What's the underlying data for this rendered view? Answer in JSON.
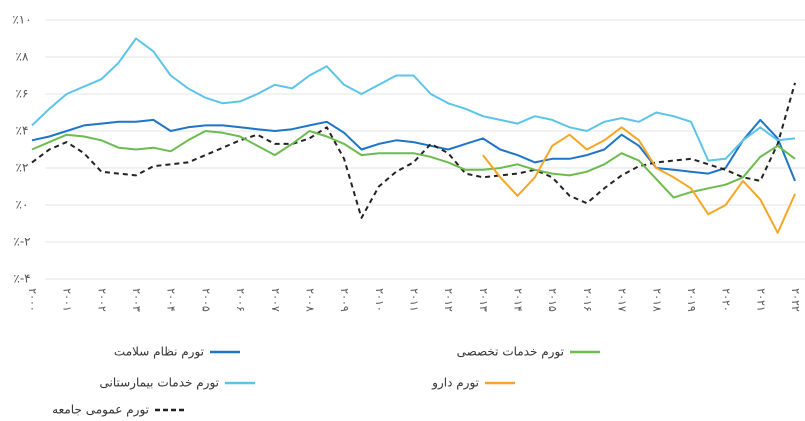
{
  "chart_data": {
    "type": "line",
    "categories": [
      "۲۰۰۰",
      null,
      "۲۰۰۱",
      null,
      "۲۰۰۲",
      null,
      "۲۰۰۳",
      null,
      "۲۰۰۴",
      null,
      "۲۰۰۵",
      null,
      "۲۰۰۶",
      null,
      "۲۰۰۷",
      null,
      "۲۰۰۸",
      null,
      "۲۰۰۹",
      null,
      "۲۰۱۰",
      null,
      "۲۰۱۱",
      null,
      "۲۰۱۲",
      null,
      "۲۰۱۳",
      null,
      "۲۰۱۴",
      null,
      "۲۰۱۵",
      null,
      "۲۰۱۶",
      null,
      "۲۰۱۷",
      null,
      "۲۰۱۸",
      null,
      "۲۰۱۹",
      null,
      "۲۰۲۰",
      null,
      "۲۰۲۱",
      null,
      "۲۰۲۲"
    ],
    "ylim": [
      -4,
      10
    ],
    "yticks": [
      {
        "value": 10,
        "label": "٪۱۰"
      },
      {
        "value": 8,
        "label": "٪۸"
      },
      {
        "value": 6,
        "label": "٪۶"
      },
      {
        "value": 4,
        "label": "٪۴"
      },
      {
        "value": 2,
        "label": "٪۲"
      },
      {
        "value": 0,
        "label": "٪۰"
      },
      {
        "value": -2,
        "label": "٪-۲"
      },
      {
        "value": -4,
        "label": "٪-۴"
      }
    ],
    "grid": true,
    "series": [
      {
        "name": "تورم نظام سلامت",
        "color": "#1f74c8",
        "dashed": false,
        "values": [
          3.5,
          3.7,
          4.0,
          4.3,
          4.4,
          4.5,
          4.5,
          4.6,
          4.0,
          4.2,
          4.3,
          4.3,
          4.2,
          4.1,
          4.0,
          4.1,
          4.3,
          4.5,
          3.9,
          3.0,
          3.3,
          3.5,
          3.4,
          3.2,
          3.0,
          3.3,
          3.6,
          3.0,
          2.7,
          2.3,
          2.5,
          2.5,
          2.7,
          3.0,
          3.8,
          3.2,
          2.0,
          1.9,
          1.8,
          1.7,
          2.0,
          3.5,
          4.6,
          3.6,
          1.3
        ]
      },
      {
        "name": "تورم خدمات بیمارستانی",
        "color": "#5cc4e8",
        "dashed": false,
        "values": [
          4.3,
          5.2,
          6.0,
          6.4,
          6.8,
          7.7,
          9.0,
          8.3,
          7.0,
          6.3,
          5.8,
          5.5,
          5.6,
          6.0,
          6.5,
          6.3,
          7.0,
          7.5,
          6.5,
          6.0,
          6.5,
          7.0,
          7.0,
          6.0,
          5.5,
          5.2,
          4.8,
          4.6,
          4.4,
          4.8,
          4.6,
          4.2,
          4.0,
          4.5,
          4.7,
          4.5,
          5.0,
          4.8,
          4.5,
          2.4,
          2.5,
          3.5,
          4.2,
          3.5,
          3.6
        ]
      },
      {
        "name": "تورم عمومی جامعه",
        "color": "#222222",
        "dashed": true,
        "values": [
          2.3,
          3.0,
          3.4,
          2.8,
          1.8,
          1.7,
          1.6,
          2.1,
          2.2,
          2.3,
          2.7,
          3.1,
          3.5,
          3.8,
          3.3,
          3.3,
          3.6,
          4.2,
          2.5,
          -0.7,
          1.0,
          1.8,
          2.3,
          3.3,
          2.8,
          1.7,
          1.5,
          1.6,
          1.7,
          1.9,
          1.5,
          0.5,
          0.1,
          0.9,
          1.6,
          2.1,
          2.3,
          2.4,
          2.5,
          2.2,
          1.9,
          1.5,
          1.3,
          3.3,
          6.6
        ]
      },
      {
        "name": "تورم خدمات تخصصی",
        "color": "#6cbb4e",
        "dashed": false,
        "values": [
          3.0,
          3.4,
          3.8,
          3.7,
          3.5,
          3.1,
          3.0,
          3.1,
          2.9,
          3.5,
          4.0,
          3.9,
          3.7,
          3.2,
          2.7,
          3.3,
          4.0,
          3.7,
          3.3,
          2.7,
          2.8,
          2.8,
          2.8,
          2.6,
          2.3,
          1.9,
          1.9,
          2.0,
          2.2,
          1.9,
          1.7,
          1.6,
          1.8,
          2.2,
          2.8,
          2.4,
          1.4,
          0.4,
          0.7,
          0.9,
          1.1,
          1.5,
          2.6,
          3.2,
          2.5
        ]
      },
      {
        "name": "تورم دارو",
        "color": "#f5a623",
        "dashed": false,
        "values": [
          null,
          null,
          null,
          null,
          null,
          null,
          null,
          null,
          null,
          null,
          null,
          null,
          null,
          null,
          null,
          null,
          null,
          null,
          null,
          null,
          null,
          null,
          null,
          null,
          null,
          null,
          2.7,
          1.5,
          0.5,
          1.5,
          3.2,
          3.8,
          3.0,
          3.5,
          4.2,
          3.5,
          2.0,
          1.5,
          0.9,
          -0.5,
          0.0,
          1.3,
          0.3,
          -1.5,
          0.6
        ]
      }
    ]
  }
}
